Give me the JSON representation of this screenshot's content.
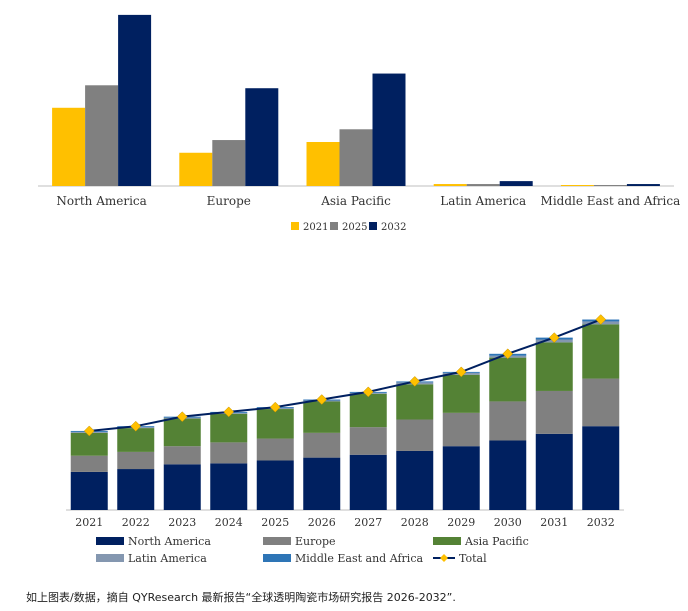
{
  "chart_data": [
    {
      "type": "bar",
      "title": "",
      "xlabel": "",
      "ylabel": "",
      "categories": [
        "North America",
        "Europe",
        "Asia Pacific",
        "Latin America",
        "Middle East and Africa"
      ],
      "series": [
        {
          "name": "2021",
          "color": "#FFC000",
          "values": [
            80,
            34,
            45,
            2,
            1
          ]
        },
        {
          "name": "2025",
          "color": "#808080",
          "values": [
            103,
            47,
            58,
            2,
            1
          ]
        },
        {
          "name": "2032",
          "color": "#002060",
          "values": [
            175,
            100,
            115,
            5,
            2
          ]
        }
      ],
      "ylim": [
        0,
        180
      ],
      "grid": false,
      "legend": "bottom-center"
    },
    {
      "type": "stacked-bar-with-line",
      "title": "",
      "xlabel": "",
      "ylabel": "",
      "categories": [
        "2021",
        "2022",
        "2023",
        "2024",
        "2025",
        "2026",
        "2027",
        "2028",
        "2029",
        "2030",
        "2031",
        "2032"
      ],
      "series": [
        {
          "name": "North America",
          "color": "#002060",
          "values": [
            40,
            43,
            48,
            49,
            52,
            55,
            58,
            62,
            67,
            73,
            80,
            88
          ]
        },
        {
          "name": "Europe",
          "color": "#808080",
          "values": [
            17,
            18,
            19,
            22,
            23,
            26,
            29,
            33,
            35,
            41,
            45,
            50
          ]
        },
        {
          "name": "Asia Pacific",
          "color": "#548235",
          "values": [
            24,
            25,
            29,
            30,
            31,
            33,
            35,
            37,
            40,
            46,
            51,
            57
          ]
        },
        {
          "name": "Latin America",
          "color": "#8497B0",
          "values": [
            1,
            1,
            1,
            1,
            1,
            1,
            1,
            2,
            2,
            2,
            3,
            3
          ]
        },
        {
          "name": "Middle East and Africa",
          "color": "#2E75B6",
          "values": [
            1,
            1,
            1,
            1,
            1,
            1,
            1,
            1,
            1,
            2,
            2,
            2
          ]
        }
      ],
      "line": {
        "name": "Total",
        "color": "#002060",
        "marker_color": "#FFC000",
        "values": [
          83,
          88,
          98,
          103,
          108,
          116,
          124,
          135,
          145,
          164,
          181,
          200
        ]
      },
      "ylim": [
        0,
        210
      ],
      "grid": false,
      "legend": "bottom"
    }
  ],
  "caption": "如上图表/数据，摘自 QYResearch 最新报告“全球透明陶瓷市场研究报告 2026-2032”."
}
